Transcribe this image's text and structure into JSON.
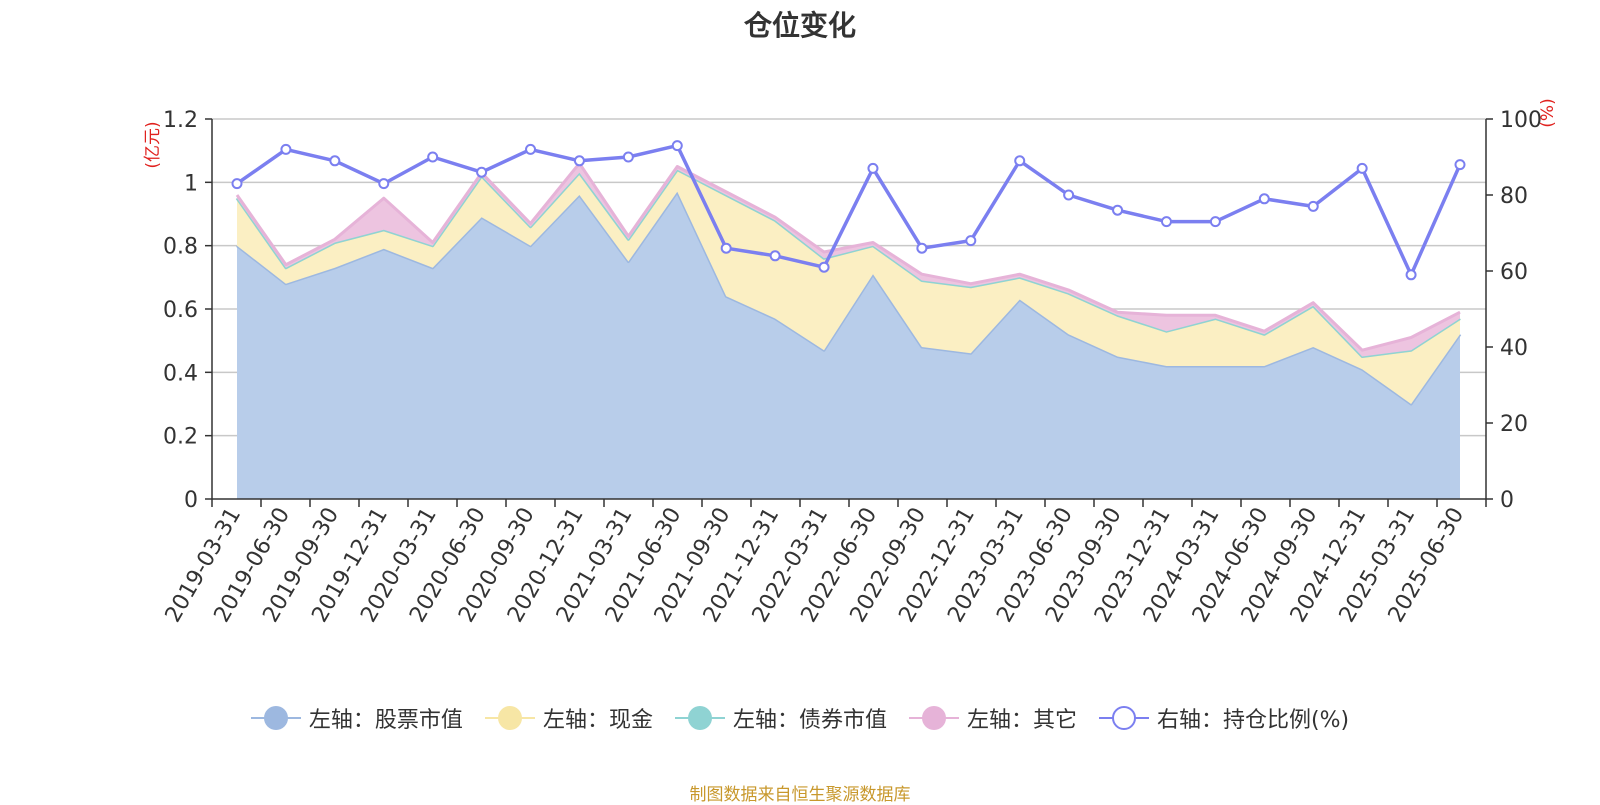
{
  "title": "仓位变化",
  "footer": "制图数据来自恒生聚源数据库",
  "chart_data": {
    "type": "area",
    "categories": [
      "2019-03-31",
      "2019-06-30",
      "2019-09-30",
      "2019-12-31",
      "2020-03-31",
      "2020-06-30",
      "2020-09-30",
      "2020-12-31",
      "2021-03-31",
      "2021-06-30",
      "2021-09-30",
      "2021-12-31",
      "2022-03-31",
      "2022-06-30",
      "2022-09-30",
      "2022-12-31",
      "2023-03-31",
      "2023-06-30",
      "2023-09-30",
      "2023-12-31",
      "2024-03-31",
      "2024-06-30",
      "2024-09-30",
      "2024-12-31",
      "2025-03-31",
      "2025-06-30"
    ],
    "left_axis": {
      "label": "(亿元)",
      "min": 0,
      "max": 1.2,
      "ticks": [
        "0",
        "0.2",
        "0.4",
        "0.6",
        "0.8",
        "1",
        "1.2"
      ],
      "tick_values": [
        0,
        0.2,
        0.4,
        0.6,
        0.8,
        1,
        1.2
      ]
    },
    "right_axis": {
      "label": "(%)",
      "min": 0,
      "max": 100,
      "ticks": [
        "0",
        "20",
        "40",
        "60",
        "80",
        "100"
      ],
      "tick_values": [
        0,
        20,
        40,
        60,
        80,
        100
      ]
    },
    "grid": true,
    "legend_position": "bottom",
    "series": [
      {
        "name": "左轴：股票市值",
        "axis": "left",
        "stack": true,
        "color": "#9db8e0",
        "fill": "#b8cdea",
        "marker": "filled",
        "values": [
          0.8,
          0.68,
          0.73,
          0.79,
          0.73,
          0.89,
          0.8,
          0.96,
          0.75,
          0.97,
          0.64,
          0.57,
          0.47,
          0.71,
          0.48,
          0.46,
          0.63,
          0.52,
          0.45,
          0.42,
          0.42,
          0.42,
          0.48,
          0.41,
          0.3,
          0.52
        ]
      },
      {
        "name": "左轴：现金",
        "axis": "left",
        "stack": true,
        "color": "#f7e6a5",
        "fill": "#fbefc3",
        "marker": "filled",
        "values": [
          0.15,
          0.05,
          0.08,
          0.06,
          0.07,
          0.13,
          0.06,
          0.07,
          0.07,
          0.07,
          0.32,
          0.31,
          0.29,
          0.09,
          0.21,
          0.21,
          0.07,
          0.13,
          0.13,
          0.11,
          0.15,
          0.1,
          0.13,
          0.04,
          0.17,
          0.05
        ]
      },
      {
        "name": "左轴：债券市值",
        "axis": "left",
        "stack": true,
        "color": "#8fd3d3",
        "fill": "#b9e6e6",
        "marker": "filled",
        "values": [
          0,
          0,
          0,
          0,
          0,
          0,
          0,
          0,
          0,
          0,
          0,
          0,
          0,
          0,
          0,
          0,
          0,
          0,
          0,
          0,
          0,
          0,
          0,
          0,
          0,
          0
        ]
      },
      {
        "name": "左轴：其它",
        "axis": "left",
        "stack": true,
        "color": "#e6b3d8",
        "fill": "#edc4e0",
        "marker": "filled",
        "values": [
          0.01,
          0.01,
          0.01,
          0.1,
          0.01,
          0.01,
          0.01,
          0.03,
          0.01,
          0.01,
          0.01,
          0.01,
          0.02,
          0.01,
          0.02,
          0.01,
          0.01,
          0.01,
          0.01,
          0.05,
          0.01,
          0.01,
          0.01,
          0.02,
          0.04,
          0.02
        ]
      },
      {
        "name": "右轴：持仓比例(%)",
        "axis": "right",
        "stack": false,
        "color": "#7b7ff0",
        "marker": "hollow",
        "values": [
          83,
          92,
          89,
          83,
          90,
          86,
          92,
          89,
          90,
          93,
          66,
          64,
          61,
          87,
          66,
          68,
          89,
          80,
          76,
          73,
          73,
          79,
          77,
          87,
          59,
          88
        ]
      }
    ]
  }
}
